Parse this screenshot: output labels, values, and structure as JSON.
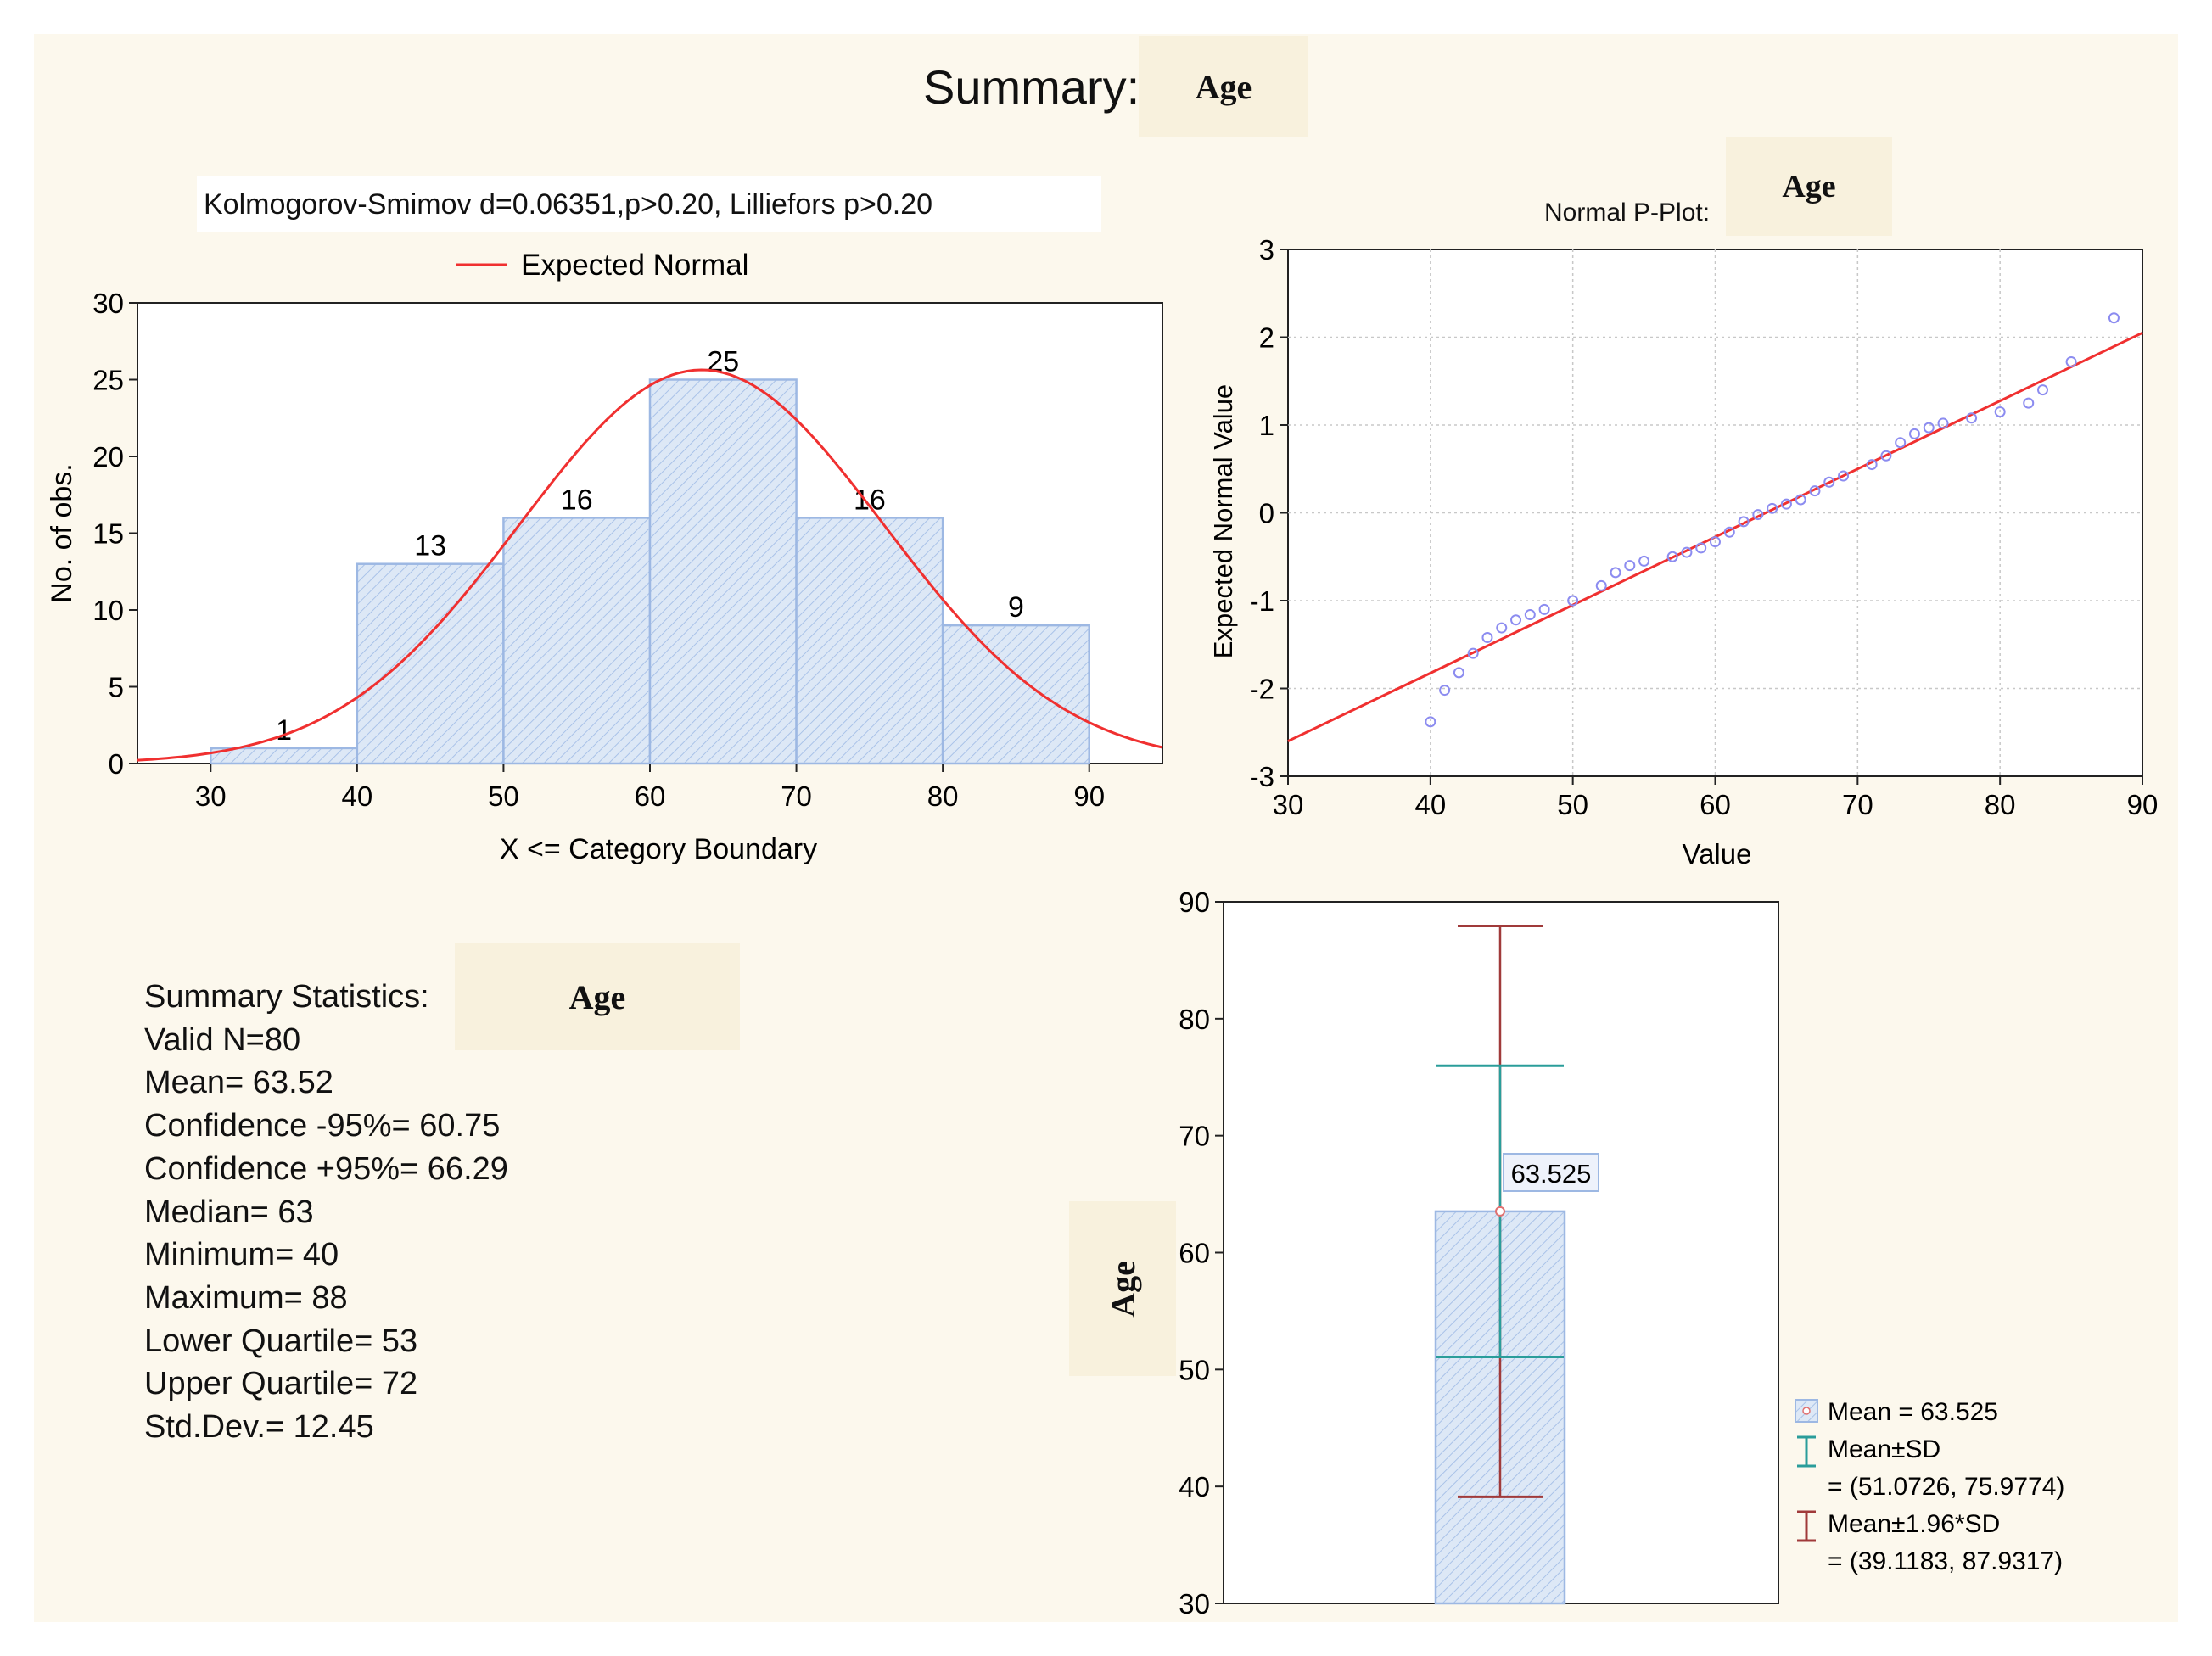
{
  "summary": {
    "title": "Summary:",
    "variable": "Age"
  },
  "histogram": {
    "test_text": "Kolmogorov-Smimov d=0.06351,p>0.20, Lilliefors p>0.20"
  },
  "pplot": {
    "title": "Normal P-Plot:",
    "variable": "Age"
  },
  "stats": {
    "heading": "Summary Statistics:",
    "variable": "Age",
    "lines": [
      "Valid N=80",
      "Mean= 63.52",
      "Confidence -95%= 60.75",
      "Confidence +95%= 66.29",
      "Median= 63",
      "Minimum= 40",
      "Maximum= 88",
      "Lower Quartile= 53",
      "Upper Quartile= 72",
      "Std.Dev.= 12.45"
    ]
  },
  "meanplot": {
    "variable": "Age"
  },
  "colors": {
    "bar_fill": "#dde8f6",
    "bar_edge": "#9db8e3",
    "curve": "#f03030",
    "sd": "#2a9d9a",
    "ci": "#a03a3a",
    "point": "#8c8cf0"
  },
  "chart_data": [
    {
      "type": "bar",
      "title": "",
      "xlabel": "X <= Category Boundary",
      "ylabel": "No. of obs.",
      "categories": [
        "30-40",
        "40-50",
        "50-60",
        "60-70",
        "70-80",
        "80-90"
      ],
      "bins": [
        [
          30,
          40
        ],
        [
          40,
          50
        ],
        [
          50,
          60
        ],
        [
          60,
          70
        ],
        [
          70,
          80
        ],
        [
          80,
          90
        ]
      ],
      "values": [
        1,
        13,
        16,
        25,
        16,
        9
      ],
      "xlim": [
        25,
        95
      ],
      "ylim": [
        0,
        30
      ],
      "xticks": [
        30,
        40,
        50,
        60,
        70,
        80,
        90
      ],
      "yticks": [
        0,
        5,
        10,
        15,
        20,
        25,
        30
      ],
      "legend": [
        {
          "label": "Expected Normal",
          "color": "#f03030"
        }
      ],
      "expected_normal": {
        "n": 80,
        "mean": 63.525,
        "sd": 12.45,
        "bin_width": 10
      }
    },
    {
      "type": "scatter",
      "title": "Normal P-Plot: Age",
      "xlabel": "Value",
      "ylabel": "Expected Normal Value",
      "xlim": [
        30,
        90
      ],
      "ylim": [
        -3,
        3
      ],
      "xticks": [
        30,
        40,
        50,
        60,
        70,
        80,
        90
      ],
      "yticks": [
        -3,
        -2,
        -1,
        0,
        1,
        2,
        3
      ],
      "points": [
        [
          40,
          -2.38
        ],
        [
          41,
          -2.02
        ],
        [
          42,
          -1.82
        ],
        [
          43,
          -1.6
        ],
        [
          44,
          -1.42
        ],
        [
          45,
          -1.31
        ],
        [
          46,
          -1.22
        ],
        [
          47,
          -1.16
        ],
        [
          48,
          -1.1
        ],
        [
          50,
          -1.0
        ],
        [
          52,
          -0.83
        ],
        [
          53,
          -0.68
        ],
        [
          54,
          -0.6
        ],
        [
          55,
          -0.55
        ],
        [
          57,
          -0.5
        ],
        [
          58,
          -0.45
        ],
        [
          59,
          -0.4
        ],
        [
          60,
          -0.33
        ],
        [
          61,
          -0.22
        ],
        [
          62,
          -0.1
        ],
        [
          63,
          -0.02
        ],
        [
          64,
          0.05
        ],
        [
          65,
          0.1
        ],
        [
          66,
          0.15
        ],
        [
          67,
          0.25
        ],
        [
          68,
          0.35
        ],
        [
          69,
          0.42
        ],
        [
          71,
          0.55
        ],
        [
          72,
          0.65
        ],
        [
          73,
          0.8
        ],
        [
          74,
          0.9
        ],
        [
          75,
          0.97
        ],
        [
          76,
          1.02
        ],
        [
          78,
          1.08
        ],
        [
          80,
          1.15
        ],
        [
          82,
          1.25
        ],
        [
          83,
          1.4
        ],
        [
          85,
          1.72
        ],
        [
          88,
          2.22
        ]
      ],
      "reference_line": [
        [
          30,
          -2.6
        ],
        [
          90,
          2.05
        ]
      ]
    },
    {
      "type": "bar",
      "title": "",
      "xlabel": "",
      "ylabel": "Age",
      "ylim": [
        30,
        90
      ],
      "yticks": [
        30,
        40,
        50,
        60,
        70,
        80,
        90
      ],
      "mean": 63.525,
      "mean_label": "63.525",
      "sd_range": [
        51.0726,
        75.9774
      ],
      "ci_range": [
        39.1183,
        87.9317
      ],
      "legend": [
        {
          "label": "Mean = 63.525",
          "sub": ""
        },
        {
          "label": "Mean±SD",
          "sub": "= (51.0726, 75.9774)"
        },
        {
          "label": "Mean±1.96*SD",
          "sub": "= (39.1183, 87.9317)"
        }
      ]
    }
  ]
}
